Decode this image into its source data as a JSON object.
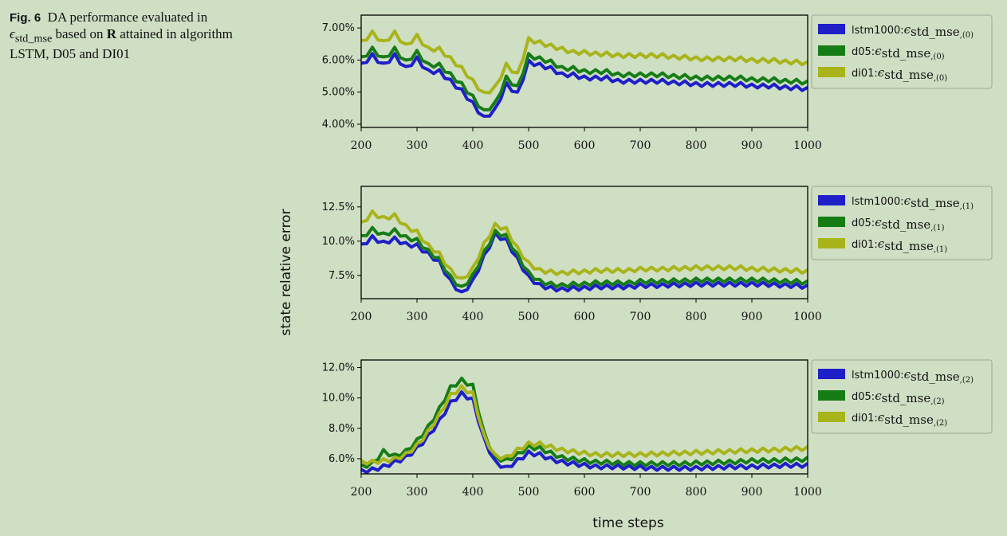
{
  "caption": {
    "label": "Fig. 6",
    "text_a": "DA performance evaluated in ",
    "symbol": "ϵ",
    "symbol_sub": "std_mse",
    "text_b": " based on ",
    "bold": "R",
    "text_c": " attained in algorithm LSTM, D05 and DI01"
  },
  "shared": {
    "ylabel": "state relative error",
    "xlabel": "time steps",
    "xticks": [
      200,
      300,
      400,
      500,
      600,
      700,
      800,
      900,
      1000
    ],
    "xlim": [
      200,
      1000
    ]
  },
  "colors": {
    "lstm1000": "#1f1fc8",
    "d05": "#167d16",
    "di01": "#a8b41a",
    "background": "#cfdfc4"
  },
  "chart_data": [
    {
      "type": "line",
      "y_format": "percent_2dp",
      "ylim": [
        3.9,
        7.4
      ],
      "yticks": [
        4.0,
        5.0,
        6.0,
        7.0
      ],
      "ytick_labels": [
        "4.00%",
        "5.00%",
        "6.00%",
        "7.00%"
      ],
      "legend_position": "outside-right",
      "series": [
        {
          "name": "lstm1000:ϵstd_mse,(0)",
          "label_prefix": "lstm1000:",
          "label_sym": "ϵ",
          "label_main": "std_mse",
          "label_idx": ",(0)",
          "color_key": "lstm1000",
          "x": [
            200,
            220,
            240,
            260,
            280,
            300,
            320,
            340,
            360,
            380,
            400,
            420,
            440,
            460,
            480,
            500,
            520,
            540,
            560,
            580,
            600,
            620,
            640,
            660,
            680,
            700,
            720,
            740,
            760,
            780,
            800,
            820,
            840,
            860,
            880,
            900,
            920,
            940,
            960,
            980,
            1000
          ],
          "y": [
            5.9,
            6.2,
            5.9,
            6.2,
            5.8,
            6.1,
            5.7,
            5.7,
            5.4,
            5.1,
            4.7,
            4.25,
            4.5,
            5.3,
            5.0,
            6.0,
            5.9,
            5.8,
            5.6,
            5.6,
            5.5,
            5.5,
            5.5,
            5.4,
            5.4,
            5.4,
            5.4,
            5.4,
            5.35,
            5.35,
            5.3,
            5.3,
            5.3,
            5.3,
            5.3,
            5.25,
            5.25,
            5.25,
            5.2,
            5.2,
            5.15
          ]
        },
        {
          "name": "d05:ϵstd_mse,(0)",
          "label_prefix": "d05:",
          "label_sym": "ϵ",
          "label_main": "std_mse",
          "label_idx": ",(0)",
          "color_key": "d05",
          "x": [
            200,
            220,
            240,
            260,
            280,
            300,
            320,
            340,
            360,
            380,
            400,
            420,
            440,
            460,
            480,
            500,
            520,
            540,
            560,
            580,
            600,
            620,
            640,
            660,
            680,
            700,
            720,
            740,
            760,
            780,
            800,
            820,
            840,
            860,
            880,
            900,
            920,
            940,
            960,
            980,
            1000
          ],
          "y": [
            6.1,
            6.4,
            6.1,
            6.4,
            6.0,
            6.3,
            5.9,
            5.9,
            5.6,
            5.3,
            4.9,
            4.45,
            4.7,
            5.5,
            5.2,
            6.2,
            6.1,
            6.0,
            5.8,
            5.8,
            5.7,
            5.7,
            5.7,
            5.6,
            5.6,
            5.6,
            5.6,
            5.6,
            5.55,
            5.55,
            5.5,
            5.5,
            5.5,
            5.5,
            5.5,
            5.45,
            5.45,
            5.45,
            5.4,
            5.4,
            5.35
          ]
        },
        {
          "name": "di01:ϵstd_mse,(0)",
          "label_prefix": "di01:",
          "label_sym": "ϵ",
          "label_main": "std_mse",
          "label_idx": ",(0)",
          "color_key": "di01",
          "x": [
            200,
            220,
            240,
            260,
            280,
            300,
            320,
            340,
            360,
            380,
            400,
            420,
            440,
            460,
            480,
            500,
            520,
            540,
            560,
            580,
            600,
            620,
            640,
            660,
            680,
            700,
            720,
            740,
            760,
            780,
            800,
            820,
            840,
            860,
            880,
            900,
            920,
            940,
            960,
            980,
            1000
          ],
          "y": [
            6.6,
            6.9,
            6.6,
            6.9,
            6.5,
            6.8,
            6.4,
            6.4,
            6.1,
            5.8,
            5.4,
            5.0,
            5.2,
            5.9,
            5.6,
            6.7,
            6.6,
            6.5,
            6.4,
            6.3,
            6.3,
            6.25,
            6.25,
            6.2,
            6.2,
            6.2,
            6.2,
            6.2,
            6.15,
            6.15,
            6.1,
            6.1,
            6.1,
            6.1,
            6.1,
            6.05,
            6.05,
            6.05,
            6.0,
            6.0,
            5.95
          ]
        }
      ]
    },
    {
      "type": "line",
      "y_format": "percent_1dp",
      "ylim": [
        5.8,
        14.0
      ],
      "yticks": [
        7.5,
        10.0,
        12.5
      ],
      "ytick_labels": [
        "7.5%",
        "10.0%",
        "12.5%"
      ],
      "legend_position": "outside-right",
      "series": [
        {
          "name": "lstm1000:ϵstd_mse,(1)",
          "label_prefix": "lstm1000:",
          "label_sym": "ϵ",
          "label_main": "std_mse",
          "label_idx": ",(1)",
          "color_key": "lstm1000",
          "x": [
            200,
            220,
            240,
            260,
            280,
            300,
            320,
            340,
            360,
            380,
            400,
            420,
            440,
            460,
            480,
            500,
            520,
            540,
            560,
            580,
            600,
            620,
            640,
            660,
            680,
            700,
            720,
            740,
            760,
            780,
            800,
            820,
            840,
            860,
            880,
            900,
            920,
            940,
            960,
            980,
            1000
          ],
          "y": [
            9.8,
            10.4,
            10.0,
            10.3,
            9.9,
            9.8,
            9.2,
            8.6,
            7.2,
            6.3,
            7.2,
            9.0,
            10.6,
            10.2,
            8.8,
            7.5,
            6.9,
            6.7,
            6.6,
            6.7,
            6.7,
            6.8,
            6.8,
            6.8,
            6.8,
            6.9,
            6.9,
            6.9,
            6.95,
            6.95,
            7.0,
            7.0,
            7.0,
            7.0,
            7.0,
            7.0,
            7.0,
            6.95,
            6.9,
            6.9,
            6.8
          ]
        },
        {
          "name": "d05:ϵstd_mse,(1)",
          "label_prefix": "d05:",
          "label_sym": "ϵ",
          "label_main": "std_mse",
          "label_idx": ",(1)",
          "color_key": "d05",
          "x": [
            200,
            220,
            240,
            260,
            280,
            300,
            320,
            340,
            360,
            380,
            400,
            420,
            440,
            460,
            480,
            500,
            520,
            540,
            560,
            580,
            600,
            620,
            640,
            660,
            680,
            700,
            720,
            740,
            760,
            780,
            800,
            820,
            840,
            860,
            880,
            900,
            920,
            940,
            960,
            980,
            1000
          ],
          "y": [
            10.4,
            11.0,
            10.6,
            10.9,
            10.4,
            10.2,
            9.4,
            8.8,
            7.5,
            6.7,
            7.6,
            9.3,
            10.8,
            10.5,
            9.1,
            7.8,
            7.2,
            7.0,
            6.9,
            7.0,
            7.0,
            7.1,
            7.1,
            7.1,
            7.1,
            7.2,
            7.2,
            7.2,
            7.25,
            7.25,
            7.3,
            7.3,
            7.3,
            7.3,
            7.3,
            7.3,
            7.3,
            7.25,
            7.2,
            7.2,
            7.1
          ]
        },
        {
          "name": "di01:ϵstd_mse,(1)",
          "label_prefix": "di01:",
          "label_sym": "ϵ",
          "label_main": "std_mse",
          "label_idx": ",(1)",
          "color_key": "di01",
          "x": [
            200,
            220,
            240,
            260,
            280,
            300,
            320,
            340,
            360,
            380,
            400,
            420,
            440,
            460,
            480,
            500,
            520,
            540,
            560,
            580,
            600,
            620,
            640,
            660,
            680,
            700,
            720,
            740,
            760,
            780,
            800,
            820,
            840,
            860,
            880,
            900,
            920,
            940,
            960,
            980,
            1000
          ],
          "y": [
            11.4,
            12.2,
            11.8,
            12.0,
            11.2,
            10.8,
            9.8,
            9.2,
            8.0,
            7.3,
            8.1,
            9.9,
            11.3,
            11.0,
            9.6,
            8.5,
            8.0,
            7.9,
            7.8,
            7.9,
            7.9,
            8.0,
            8.0,
            8.0,
            8.0,
            8.1,
            8.1,
            8.1,
            8.15,
            8.15,
            8.2,
            8.2,
            8.2,
            8.2,
            8.2,
            8.1,
            8.1,
            8.05,
            8.0,
            8.0,
            7.9
          ]
        }
      ]
    },
    {
      "type": "line",
      "y_format": "percent_1dp",
      "ylim": [
        5.0,
        12.5
      ],
      "yticks": [
        6.0,
        8.0,
        10.0,
        12.0
      ],
      "ytick_labels": [
        "6.0%",
        "8.0%",
        "10.0%",
        "12.0%"
      ],
      "legend_position": "outside-right",
      "series": [
        {
          "name": "lstm1000:ϵstd_mse,(2)",
          "label_prefix": "lstm1000:",
          "label_sym": "ϵ",
          "label_main": "std_mse",
          "label_idx": ",(2)",
          "color_key": "lstm1000",
          "x": [
            200,
            220,
            240,
            260,
            280,
            300,
            320,
            340,
            360,
            380,
            400,
            420,
            440,
            460,
            480,
            500,
            520,
            540,
            560,
            580,
            600,
            620,
            640,
            660,
            680,
            700,
            720,
            740,
            760,
            780,
            800,
            820,
            840,
            860,
            880,
            900,
            920,
            940,
            960,
            980,
            1000
          ],
          "y": [
            5.3,
            5.4,
            5.6,
            5.9,
            6.2,
            6.8,
            7.6,
            8.6,
            9.8,
            10.4,
            10.0,
            7.4,
            5.9,
            5.5,
            6.0,
            6.5,
            6.4,
            6.1,
            5.9,
            5.8,
            5.7,
            5.6,
            5.6,
            5.6,
            5.55,
            5.55,
            5.5,
            5.5,
            5.5,
            5.5,
            5.5,
            5.55,
            5.55,
            5.6,
            5.6,
            5.6,
            5.65,
            5.65,
            5.7,
            5.7,
            5.7
          ]
        },
        {
          "name": "d05:ϵstd_mse,(2)",
          "label_prefix": "d05:",
          "label_sym": "ϵ",
          "label_main": "std_mse",
          "label_idx": ",(2)",
          "color_key": "d05",
          "x": [
            200,
            220,
            240,
            260,
            280,
            300,
            320,
            340,
            360,
            380,
            400,
            420,
            440,
            460,
            480,
            500,
            520,
            540,
            560,
            580,
            600,
            620,
            640,
            660,
            680,
            700,
            720,
            740,
            760,
            780,
            800,
            820,
            840,
            860,
            880,
            900,
            920,
            940,
            960,
            980,
            1000
          ],
          "y": [
            5.6,
            5.8,
            6.6,
            6.3,
            6.6,
            7.3,
            8.2,
            9.4,
            10.8,
            11.3,
            10.9,
            7.8,
            6.2,
            6.0,
            6.4,
            6.9,
            6.8,
            6.5,
            6.2,
            6.1,
            6.0,
            5.9,
            5.9,
            5.85,
            5.8,
            5.8,
            5.8,
            5.8,
            5.8,
            5.8,
            5.85,
            5.85,
            5.9,
            5.9,
            5.95,
            6.0,
            6.0,
            6.0,
            6.05,
            6.05,
            6.1
          ]
        },
        {
          "name": "di01:ϵstd_mse,(2)",
          "label_prefix": "di01:",
          "label_sym": "ϵ",
          "label_main": "std_mse",
          "label_idx": ",(2)",
          "color_key": "di01",
          "x": [
            200,
            220,
            240,
            260,
            280,
            300,
            320,
            340,
            360,
            380,
            400,
            420,
            440,
            460,
            480,
            500,
            520,
            540,
            560,
            580,
            600,
            620,
            640,
            660,
            680,
            700,
            720,
            740,
            760,
            780,
            800,
            820,
            840,
            860,
            880,
            900,
            920,
            940,
            960,
            980,
            1000
          ],
          "y": [
            5.9,
            5.9,
            6.0,
            6.1,
            6.4,
            7.0,
            7.9,
            9.0,
            10.3,
            10.8,
            10.4,
            7.6,
            6.3,
            6.2,
            6.7,
            7.1,
            7.1,
            6.9,
            6.7,
            6.6,
            6.5,
            6.4,
            6.4,
            6.4,
            6.4,
            6.4,
            6.45,
            6.45,
            6.5,
            6.5,
            6.55,
            6.55,
            6.6,
            6.6,
            6.65,
            6.65,
            6.7,
            6.7,
            6.75,
            6.8,
            6.8
          ]
        }
      ]
    }
  ]
}
